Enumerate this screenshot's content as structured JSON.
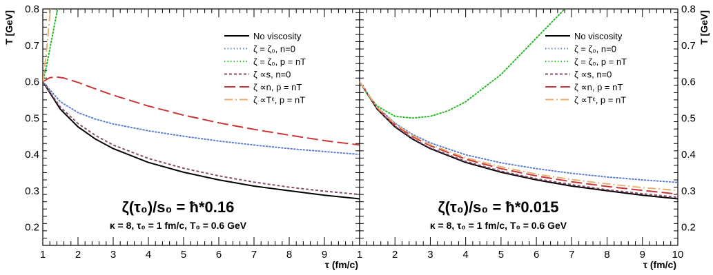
{
  "chart_data": [
    {
      "type": "line",
      "panel": "left",
      "xlabel": "τ (fm/c)",
      "ylabel": "T [GeV]",
      "xlim": [
        1,
        10
      ],
      "ylim": [
        0.15,
        0.8
      ],
      "x_ticks": [
        "1",
        "2",
        "3",
        "4",
        "5",
        "6",
        "7",
        "8",
        "9"
      ],
      "y_ticks": [
        "0.2",
        "0.3",
        "0.4",
        "0.5",
        "0.6",
        "0.7",
        "0.8"
      ],
      "legend_position": "top-right",
      "annotation_main": "ζ(τ₀)/s₀ = ħ*0.16",
      "annotation_sub": "κ = 8, τ₀ = 1 fm/c, T₀ = 0.6 GeV",
      "series": [
        {
          "name": "No viscosity",
          "color": "#000000",
          "dash": "solid",
          "x": [
            1,
            1.5,
            2,
            2.5,
            3,
            4,
            5,
            6,
            7,
            8,
            9,
            10
          ],
          "y": [
            0.6,
            0.524,
            0.476,
            0.442,
            0.416,
            0.378,
            0.351,
            0.33,
            0.313,
            0.3,
            0.288,
            0.278
          ]
        },
        {
          "name": "ζ = ζ₀, n=0",
          "color": "#5b7fd0",
          "dash": "dot",
          "x": [
            1,
            1.5,
            2,
            2.5,
            3,
            4,
            5,
            6,
            7,
            8,
            9,
            10
          ],
          "y": [
            0.6,
            0.545,
            0.515,
            0.497,
            0.484,
            0.465,
            0.45,
            0.437,
            0.426,
            0.416,
            0.408,
            0.4
          ]
        },
        {
          "name": "ζ = ζ₀, p = nT",
          "color": "#22bb22",
          "dash": "dot",
          "x": [
            1,
            1.1,
            1.2,
            1.3,
            1.4,
            1.5,
            1.6
          ],
          "y": [
            0.6,
            0.64,
            0.69,
            0.74,
            0.79,
            0.84,
            0.89
          ]
        },
        {
          "name": "ζ ∝s, n=0",
          "color": "#8b4a6b",
          "dash": "short",
          "x": [
            1,
            1.5,
            2,
            2.5,
            3,
            4,
            5,
            6,
            7,
            8,
            9,
            10
          ],
          "y": [
            0.6,
            0.53,
            0.485,
            0.452,
            0.426,
            0.389,
            0.362,
            0.341,
            0.324,
            0.31,
            0.299,
            0.29
          ]
        },
        {
          "name": "ζ ∝n, p = nT",
          "color": "#cc3333",
          "dash": "long",
          "x": [
            1,
            1.2,
            1.4,
            1.6,
            2,
            2.5,
            3,
            4,
            5,
            6,
            7,
            8,
            9,
            10
          ],
          "y": [
            0.6,
            0.611,
            0.613,
            0.61,
            0.598,
            0.58,
            0.563,
            0.533,
            0.508,
            0.487,
            0.469,
            0.453,
            0.438,
            0.426
          ]
        },
        {
          "name": "ζ ∝Tᵋ, p = nT",
          "color": "#e8b070",
          "dash": "dashdot",
          "x": [
            1,
            1.05,
            1.1,
            1.15,
            1.2,
            1.25
          ],
          "y": [
            0.6,
            0.635,
            0.68,
            0.73,
            0.78,
            0.83
          ]
        }
      ]
    },
    {
      "type": "line",
      "panel": "right",
      "xlabel": "τ (fm/c)",
      "ylabel": "T [GeV]",
      "xlim": [
        1,
        10
      ],
      "ylim": [
        0.15,
        0.8
      ],
      "x_ticks": [
        "1",
        "2",
        "3",
        "4",
        "5",
        "6",
        "7",
        "8",
        "9",
        "10"
      ],
      "y_ticks": [
        "0.2",
        "0.3",
        "0.4",
        "0.5",
        "0.6",
        "0.7",
        "0.8"
      ],
      "legend_position": "top-right",
      "annotation_main": "ζ(τ₀)/s₀ = ħ*0.015",
      "annotation_sub": "κ = 8, τ₀ = 1 fm/c, T₀ = 0.6 GeV",
      "series": [
        {
          "name": "No viscosity",
          "color": "#000000",
          "dash": "solid",
          "x": [
            1,
            1.5,
            2,
            2.5,
            3,
            4,
            5,
            6,
            7,
            8,
            9,
            10
          ],
          "y": [
            0.6,
            0.524,
            0.476,
            0.442,
            0.416,
            0.378,
            0.351,
            0.33,
            0.313,
            0.3,
            0.288,
            0.278
          ]
        },
        {
          "name": "ζ = ζ₀, n=0",
          "color": "#5b7fd0",
          "dash": "dot",
          "x": [
            1,
            1.5,
            2,
            2.5,
            3,
            4,
            5,
            6,
            7,
            8,
            9,
            10
          ],
          "y": [
            0.6,
            0.53,
            0.486,
            0.455,
            0.432,
            0.399,
            0.377,
            0.361,
            0.348,
            0.338,
            0.33,
            0.323
          ]
        },
        {
          "name": "ζ = ζ₀, p = nT",
          "color": "#22bb22",
          "dash": "dot",
          "x": [
            1,
            1.25,
            1.5,
            2,
            2.5,
            3,
            3.5,
            4,
            5,
            6,
            6.8
          ],
          "y": [
            0.6,
            0.56,
            0.533,
            0.505,
            0.5,
            0.505,
            0.52,
            0.545,
            0.62,
            0.72,
            0.8
          ]
        },
        {
          "name": "ζ ∝s, n=0",
          "color": "#8b4a6b",
          "dash": "short",
          "x": [
            1,
            1.5,
            2,
            2.5,
            3,
            4,
            5,
            6,
            7,
            8,
            9,
            10
          ],
          "y": [
            0.6,
            0.525,
            0.478,
            0.444,
            0.418,
            0.381,
            0.354,
            0.333,
            0.317,
            0.303,
            0.292,
            0.282
          ]
        },
        {
          "name": "ζ ∝n, p = nT",
          "color": "#cc3333",
          "dash": "long",
          "x": [
            1,
            1.5,
            2,
            2.5,
            3,
            4,
            5,
            6,
            7,
            8,
            9,
            10
          ],
          "y": [
            0.6,
            0.528,
            0.482,
            0.449,
            0.424,
            0.387,
            0.361,
            0.341,
            0.325,
            0.312,
            0.301,
            0.291
          ]
        },
        {
          "name": "ζ ∝Tᵋ, p = nT",
          "color": "#e8b070",
          "dash": "dashdot",
          "x": [
            1,
            1.5,
            2,
            2.5,
            3,
            4,
            5,
            6,
            7,
            8,
            9,
            10
          ],
          "y": [
            0.6,
            0.529,
            0.484,
            0.452,
            0.427,
            0.391,
            0.366,
            0.346,
            0.331,
            0.319,
            0.309,
            0.301
          ]
        }
      ]
    }
  ]
}
